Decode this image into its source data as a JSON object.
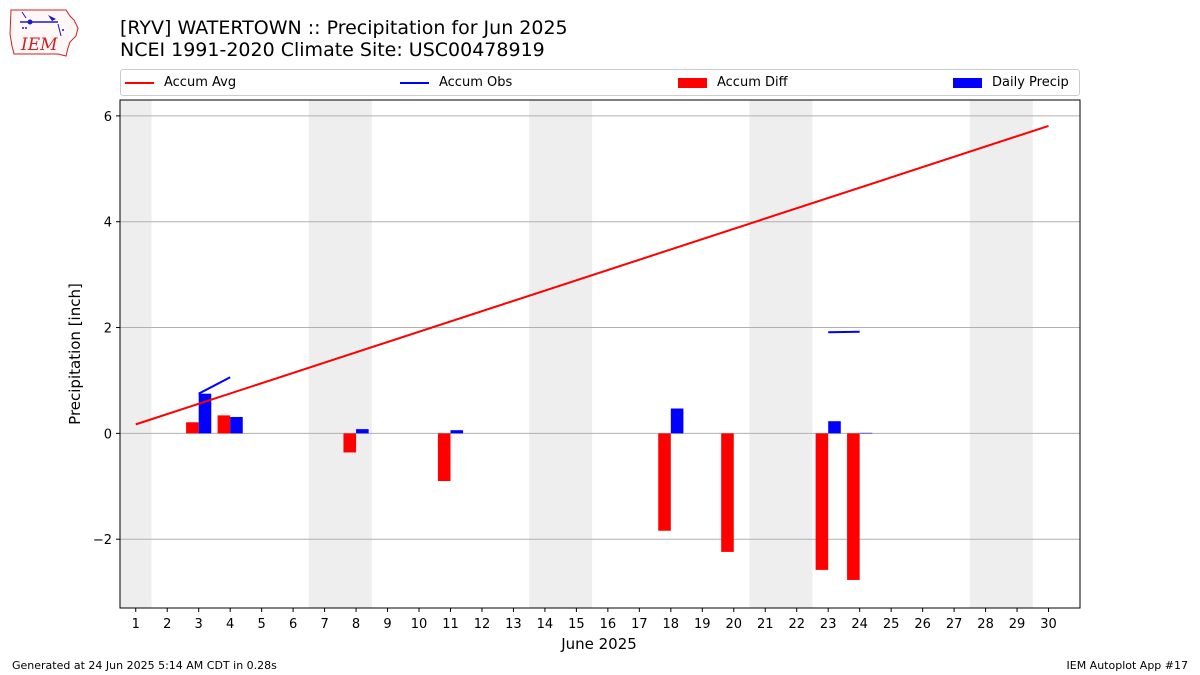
{
  "logo": {
    "text": "IEM",
    "icon": "iowa-state-outline-with-weather-symbols"
  },
  "header": {
    "title": "[RYV] WATERTOWN :: Precipitation for Jun 2025",
    "subtitle": "NCEI 1991-2020 Climate Site: USC00478919"
  },
  "legend": [
    {
      "label": "Accum Avg",
      "kind": "line",
      "color": "#ff0000"
    },
    {
      "label": "Accum Obs",
      "kind": "line",
      "color": "#0000ff"
    },
    {
      "label": "Accum Diff",
      "kind": "bar",
      "color": "#ff0000"
    },
    {
      "label": "Daily Precip",
      "kind": "bar",
      "color": "#0000ff"
    }
  ],
  "footer": {
    "generated": "Generated at 24 Jun 2025 5:14 AM CDT in 0.28s",
    "app": "IEM Autoplot App #17"
  },
  "chart_data": {
    "type": "bar",
    "xlabel": "June 2025",
    "ylabel": "Precipitation [inch]",
    "xlim": [
      0.5,
      31
    ],
    "ylim": [
      -3.3,
      6.3
    ],
    "yticks": [
      -2,
      0,
      2,
      4,
      6
    ],
    "ytick_labels": [
      "−2",
      "0",
      "2",
      "4",
      "6"
    ],
    "x": [
      1,
      2,
      3,
      4,
      5,
      6,
      7,
      8,
      9,
      10,
      11,
      12,
      13,
      14,
      15,
      16,
      17,
      18,
      19,
      20,
      21,
      22,
      23,
      24,
      25,
      26,
      27,
      28,
      29,
      30
    ],
    "weekend_shading": [
      [
        0.5,
        1.5
      ],
      [
        6.5,
        8.5
      ],
      [
        13.5,
        15.5
      ],
      [
        20.5,
        22.5
      ],
      [
        27.5,
        29.5
      ]
    ],
    "grid": "y",
    "legend_position": "top",
    "series": [
      {
        "name": "Accum Avg",
        "type": "line",
        "color": "#ff0000",
        "x": [
          1,
          30
        ],
        "values": [
          0.17,
          5.81
        ]
      },
      {
        "name": "Accum Obs",
        "type": "line",
        "color": "#0000ff",
        "segments": [
          {
            "x": [
              3,
              4
            ],
            "values": [
              0.75,
              1.06
            ]
          },
          {
            "x": [
              23,
              24
            ],
            "values": [
              1.91,
              1.92
            ]
          }
        ]
      },
      {
        "name": "Accum Diff",
        "type": "bar",
        "color": "#ff0000",
        "x": [
          3,
          4,
          8,
          11,
          18,
          20,
          23,
          24
        ],
        "values": [
          0.21,
          0.34,
          -0.36,
          -0.9,
          -1.84,
          -2.24,
          -2.58,
          -2.77
        ]
      },
      {
        "name": "Daily Precip",
        "type": "bar",
        "color": "#0000ff",
        "x": [
          3,
          4,
          8,
          11,
          18,
          23,
          24
        ],
        "values": [
          0.75,
          0.31,
          0.08,
          0.06,
          0.47,
          0.23,
          0.01
        ]
      }
    ]
  }
}
